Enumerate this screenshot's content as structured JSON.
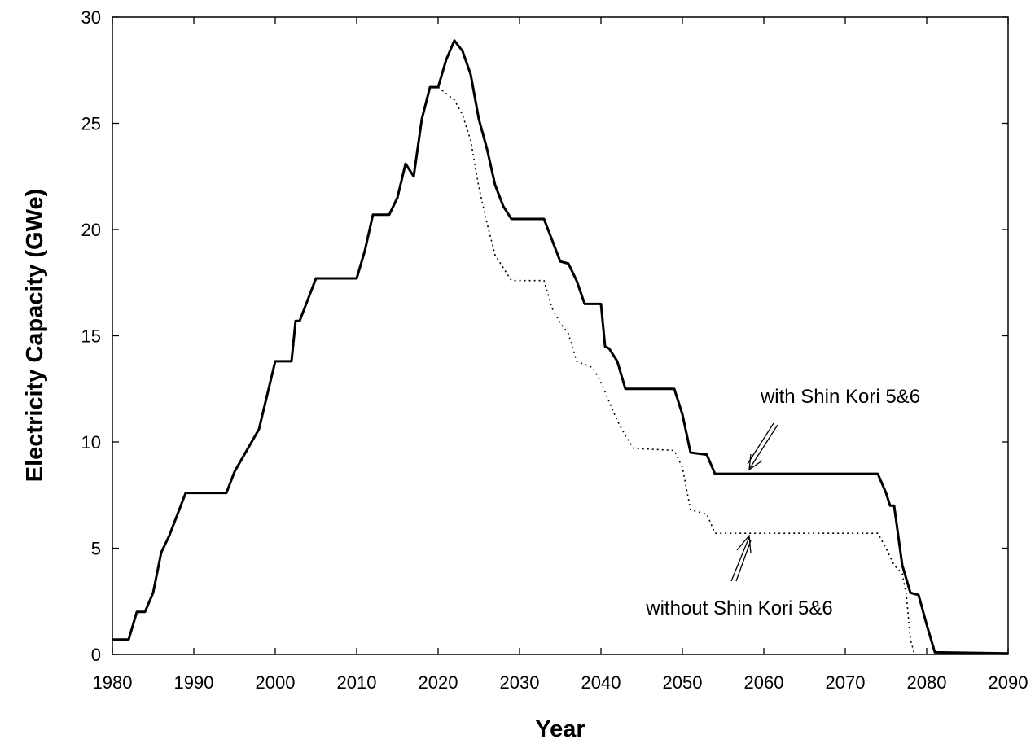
{
  "chart_data": {
    "type": "line",
    "xlabel": "Year",
    "ylabel": "Electricity Capacity (GWe)",
    "xlim": [
      1980,
      2090
    ],
    "ylim": [
      0,
      30
    ],
    "xticks": [
      1980,
      1990,
      2000,
      2010,
      2020,
      2030,
      2040,
      2050,
      2060,
      2070,
      2080,
      2090
    ],
    "yticks": [
      0,
      5,
      10,
      15,
      20,
      25,
      30
    ],
    "grid": false,
    "series": [
      {
        "name": "with Shin Kori 5&6",
        "color": "#000000",
        "dash": "solid",
        "x": [
          1980,
          1982,
          1983,
          1984,
          1985,
          1986,
          1987,
          1988,
          1989,
          1994,
          1995,
          1998,
          2000,
          2002,
          2002.5,
          2003,
          2005,
          2010,
          2011,
          2012,
          2014,
          2015,
          2016,
          2017,
          2018,
          2019,
          2020,
          2021,
          2022,
          2023,
          2024,
          2025,
          2026,
          2027,
          2028,
          2029,
          2033,
          2035,
          2036,
          2037,
          2038,
          2040,
          2040.5,
          2041,
          2042,
          2043,
          2049,
          2050,
          2051,
          2053,
          2054,
          2074,
          2075,
          2075.5,
          2076,
          2077,
          2078,
          2079,
          2080,
          2081,
          2090
        ],
        "values": [
          0.7,
          0.7,
          2.0,
          2.0,
          2.9,
          4.8,
          5.6,
          6.6,
          7.6,
          7.6,
          8.6,
          10.6,
          13.8,
          13.8,
          15.7,
          15.7,
          17.7,
          17.7,
          19.0,
          20.7,
          20.7,
          21.5,
          23.1,
          22.5,
          25.2,
          26.7,
          26.7,
          28.0,
          28.9,
          28.4,
          27.3,
          25.2,
          23.8,
          22.1,
          21.1,
          20.5,
          20.5,
          18.5,
          18.4,
          17.6,
          16.5,
          16.5,
          14.5,
          14.4,
          13.8,
          12.5,
          12.5,
          11.3,
          9.5,
          9.4,
          8.5,
          8.5,
          7.6,
          7.0,
          7.0,
          4.2,
          2.9,
          2.8,
          1.4,
          0.1,
          0.05
        ]
      },
      {
        "name": "without Shin Kori 5&6",
        "color": "#000000",
        "dash": "dotted",
        "x": [
          2020,
          2021,
          2022,
          2023,
          2024,
          2025,
          2026,
          2027,
          2028,
          2029,
          2033,
          2034,
          2035,
          2036,
          2037,
          2039,
          2040,
          2042,
          2043,
          2044,
          2049,
          2050,
          2051,
          2053,
          2054,
          2074,
          2075,
          2076,
          2077,
          2077.5,
          2078,
          2078.5
        ],
        "values": [
          26.7,
          26.4,
          26.1,
          25.4,
          24.2,
          22.0,
          20.3,
          18.8,
          18.2,
          17.6,
          17.6,
          16.3,
          15.6,
          15.1,
          13.8,
          13.5,
          12.8,
          11.0,
          10.3,
          9.7,
          9.6,
          8.8,
          6.8,
          6.6,
          5.7,
          5.7,
          5.0,
          4.2,
          3.8,
          2.8,
          0.7,
          0
        ]
      }
    ]
  }
}
